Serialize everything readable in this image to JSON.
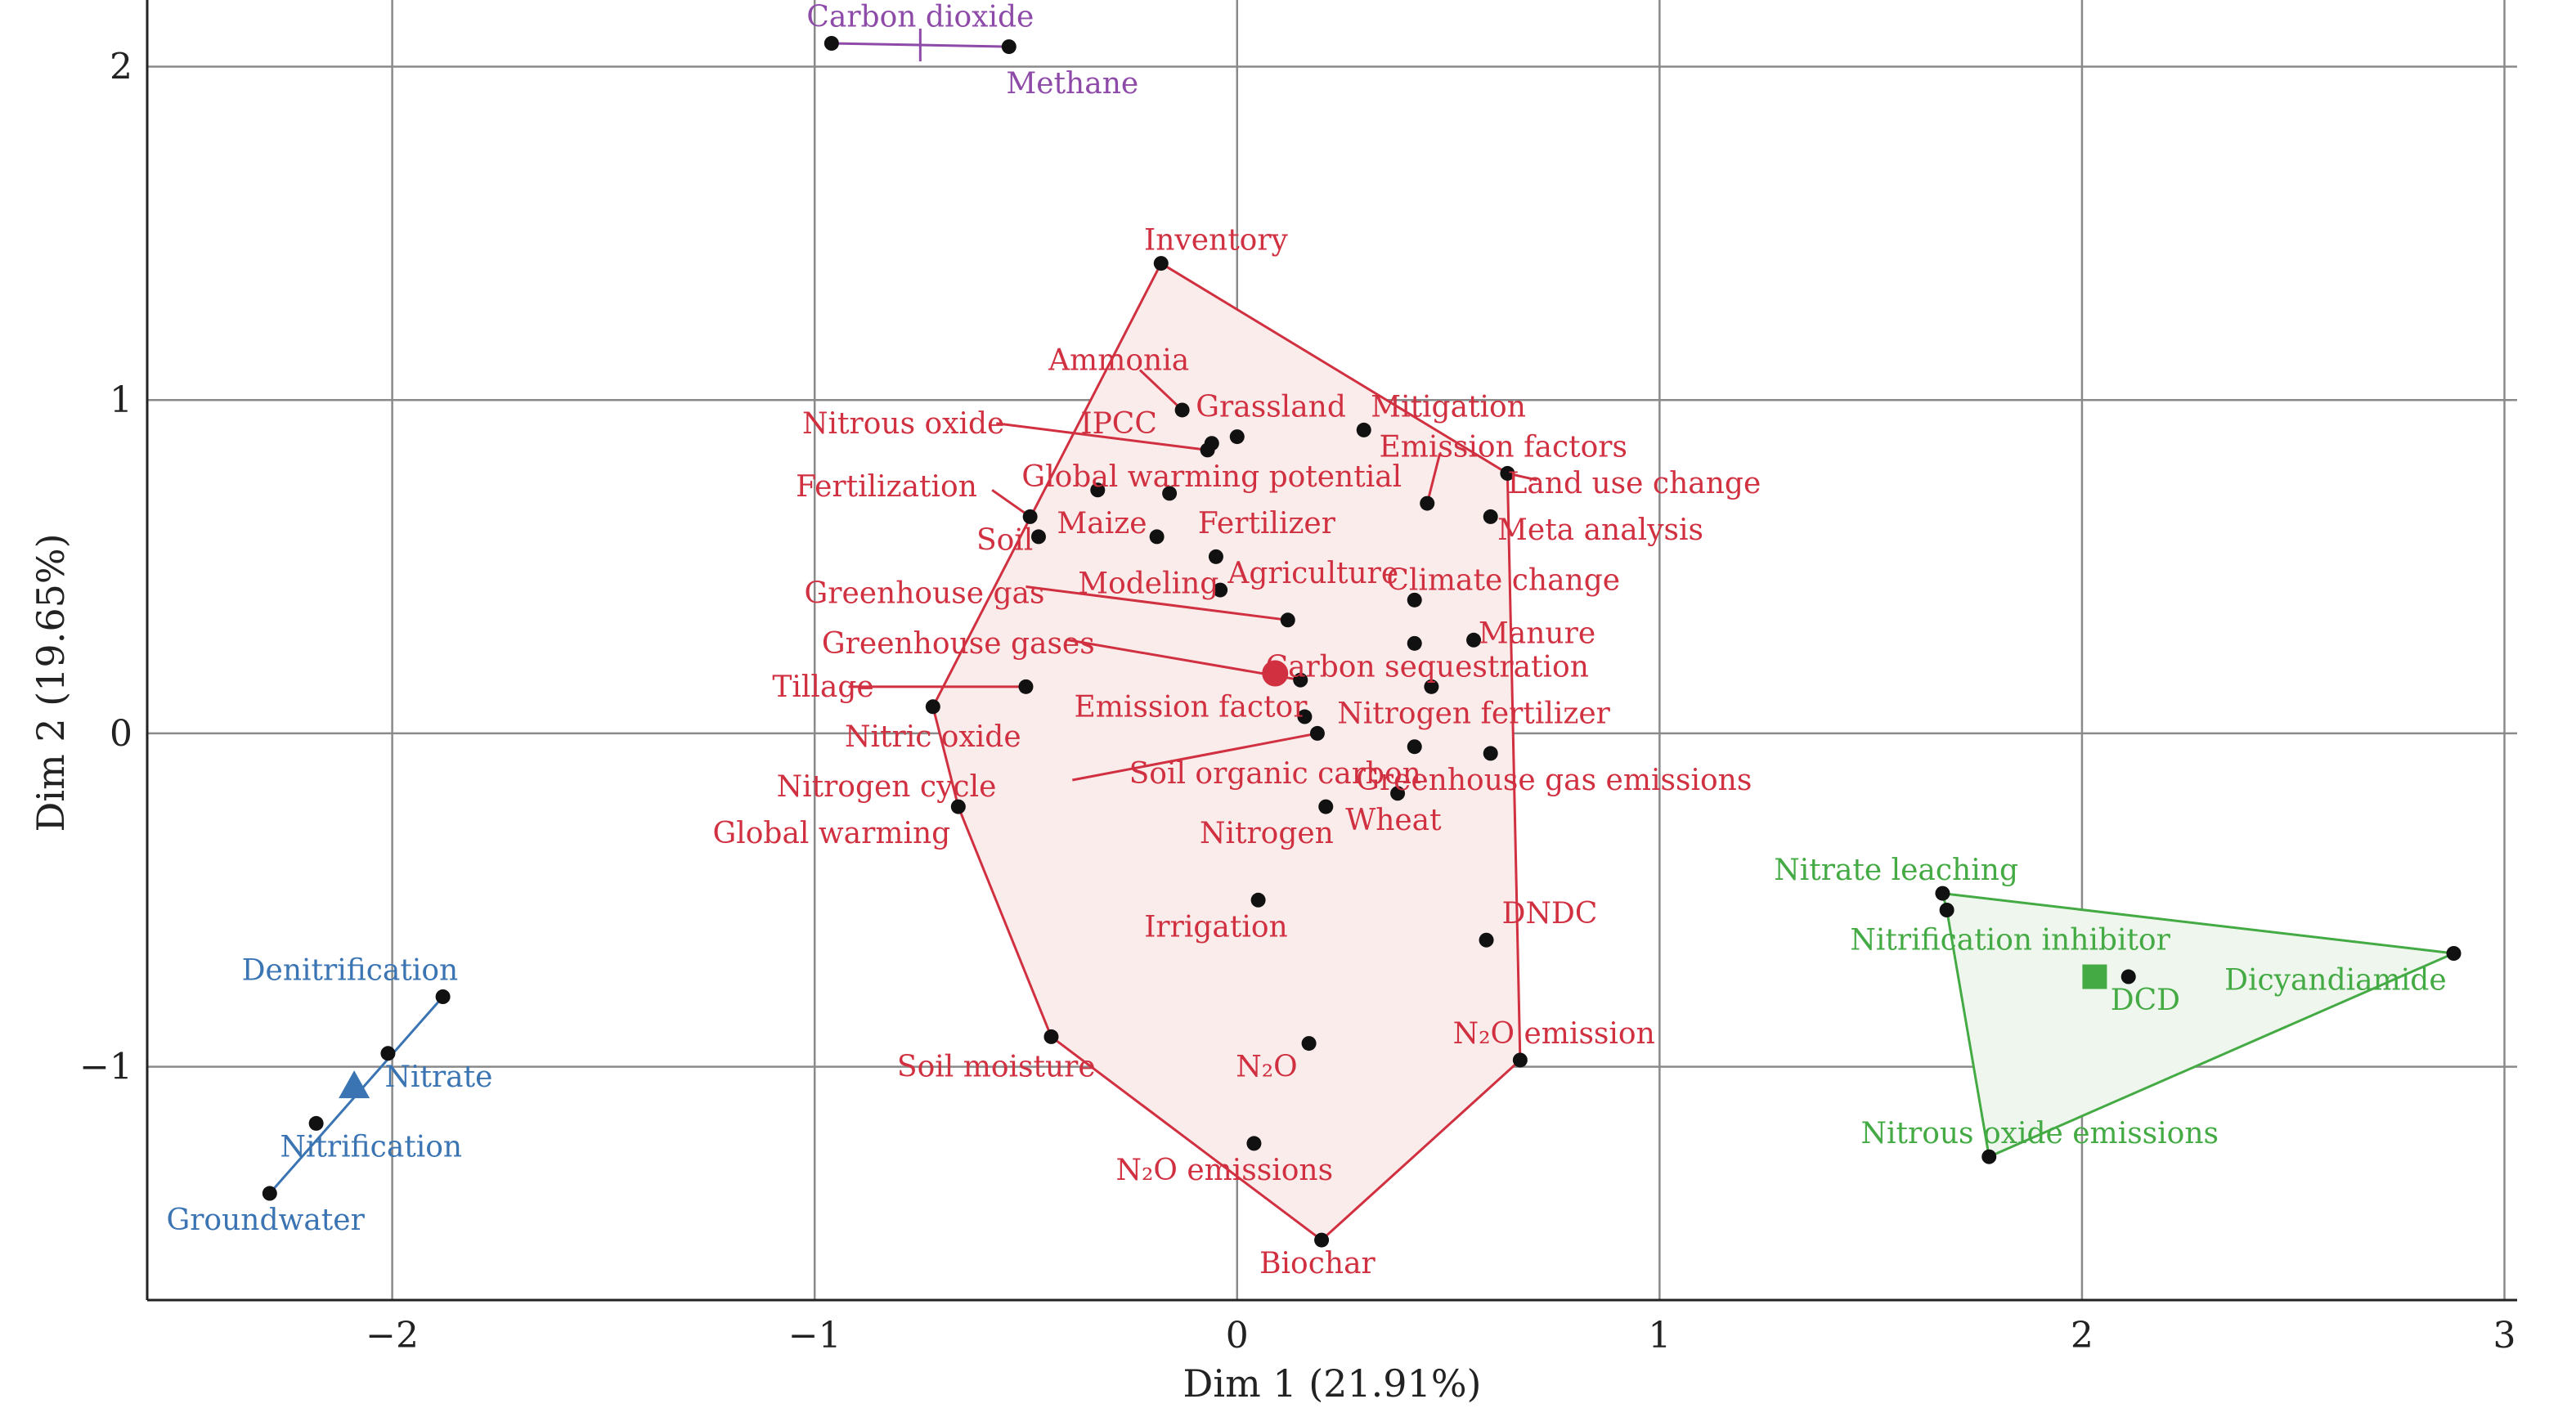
{
  "chart_data": {
    "type": "scatter",
    "xlabel": "Dim 1 (21.91%)",
    "ylabel": "Dim 2 (19.65%)",
    "xlim": [
      -2.58,
      3.03
    ],
    "ylim": [
      -1.7,
      2.2
    ],
    "xticks": [
      -2,
      -1,
      0,
      1,
      2,
      3
    ],
    "yticks": [
      -1,
      0,
      1,
      2
    ],
    "xtick_labels": [
      "−2",
      "−1",
      "0",
      "1",
      "2",
      "3"
    ],
    "ytick_labels": [
      "−1",
      "0",
      "1",
      "2"
    ],
    "grid": true,
    "colors": {
      "red": "#d03040",
      "blue": "#3b74b3",
      "green": "#44aa44",
      "purple": "#8e4aa8",
      "point": "#111111"
    },
    "clusters": [
      {
        "id": "purple",
        "color": "#8e4aa8",
        "hull": [
          [
            -0.96,
            2.07
          ],
          [
            -0.54,
            2.06
          ]
        ],
        "center": {
          "x": -0.75,
          "y": 2.065,
          "marker": "tick"
        },
        "points": [
          {
            "label": "Carbon dioxide",
            "x": -0.96,
            "y": 2.07,
            "lx": -0.75,
            "ly": 2.15
          },
          {
            "label": "Methane",
            "x": -0.54,
            "y": 2.06,
            "lx": -0.39,
            "ly": 1.95
          }
        ]
      },
      {
        "id": "red",
        "color": "#d03040",
        "fill": "#fbecec",
        "hull": [
          [
            -0.18,
            1.41
          ],
          [
            0.64,
            0.78
          ],
          [
            0.67,
            -0.98
          ],
          [
            0.2,
            -1.52
          ],
          [
            -0.44,
            -0.91
          ],
          [
            -0.66,
            -0.22
          ],
          [
            -0.72,
            0.08
          ]
        ],
        "center": {
          "x": 0.09,
          "y": 0.18,
          "marker": "circle"
        },
        "points": [
          {
            "label": "Inventory",
            "x": -0.18,
            "y": 1.41,
            "lx": -0.05,
            "ly": 1.48
          },
          {
            "label": "Ammonia",
            "x": -0.13,
            "y": 0.97,
            "lx": -0.28,
            "ly": 1.12,
            "lead": [
              -0.23,
              1.09
            ]
          },
          {
            "label": "Grassland",
            "x": 0.0,
            "y": 0.89,
            "lx": 0.08,
            "ly": 0.98
          },
          {
            "label": "Mitigation",
            "x": 0.3,
            "y": 0.91,
            "lx": 0.5,
            "ly": 0.98
          },
          {
            "label": "IPCC",
            "x": -0.06,
            "y": 0.87,
            "lx": -0.28,
            "ly": 0.93
          },
          {
            "label": "Nitrous oxide",
            "x": -0.07,
            "y": 0.85,
            "lx": -0.79,
            "ly": 0.93,
            "lead": [
              -0.57,
              0.93
            ]
          },
          {
            "label": "Emission factors",
            "x": 0.45,
            "y": 0.69,
            "lx": 0.63,
            "ly": 0.86,
            "lead": [
              0.48,
              0.84
            ]
          },
          {
            "label": "Land use change",
            "x": 0.64,
            "y": 0.78,
            "lx": 0.94,
            "ly": 0.75,
            "lead": [
              0.71,
              0.76
            ]
          },
          {
            "label": "Global warming potential",
            "x": -0.16,
            "y": 0.72,
            "lx": -0.06,
            "ly": 0.77
          },
          {
            "label": "Fertilization",
            "x": -0.49,
            "y": 0.65,
            "lx": -0.83,
            "ly": 0.74,
            "lead": [
              -0.58,
              0.73
            ]
          },
          {
            "label": "Meta analysis",
            "x": 0.6,
            "y": 0.65,
            "lx": 0.86,
            "ly": 0.61
          },
          {
            "label": "Maize",
            "x": -0.33,
            "y": 0.73,
            "lx": -0.32,
            "ly": 0.63
          },
          {
            "label": "Soil",
            "x": -0.47,
            "y": 0.59,
            "lx": -0.55,
            "ly": 0.58
          },
          {
            "label": "Fertilizer",
            "x": -0.19,
            "y": 0.59,
            "lx": 0.07,
            "ly": 0.63
          },
          {
            "label": "Agriculture",
            "x": -0.05,
            "y": 0.53,
            "lx": 0.18,
            "ly": 0.48
          },
          {
            "label": "Modeling",
            "x": -0.04,
            "y": 0.43,
            "lx": -0.21,
            "ly": 0.45
          },
          {
            "label": "Climate change",
            "x": 0.42,
            "y": 0.4,
            "lx": 0.63,
            "ly": 0.46
          },
          {
            "label": "Greenhouse gas",
            "x": 0.12,
            "y": 0.34,
            "lx": -0.74,
            "ly": 0.42,
            "lead": [
              -0.5,
              0.44
            ]
          },
          {
            "label": "Manure",
            "x": 0.56,
            "y": 0.28,
            "lx": 0.71,
            "ly": 0.3
          },
          {
            "label": "Greenhouse gases",
            "x": 0.15,
            "y": 0.16,
            "lx": -0.66,
            "ly": 0.27,
            "lead": [
              -0.4,
              0.28
            ]
          },
          {
            "label": "Carbon sequestration",
            "x": 0.42,
            "y": 0.27,
            "lx": 0.45,
            "ly": 0.2
          },
          {
            "label": "Tillage",
            "x": -0.5,
            "y": 0.14,
            "lx": -0.98,
            "ly": 0.14,
            "lead": [
              -0.92,
              0.14
            ]
          },
          {
            "label": "Emission factor",
            "x": 0.16,
            "y": 0.05,
            "lx": -0.11,
            "ly": 0.08
          },
          {
            "label": "Nitrogen fertilizer",
            "x": 0.46,
            "y": 0.14,
            "lx": 0.56,
            "ly": 0.06
          },
          {
            "label": "Nitric oxide",
            "x": -0.72,
            "y": 0.08,
            "lx": -0.72,
            "ly": -0.01
          },
          {
            "label": "Soil organic carbon",
            "x": 0.42,
            "y": -0.04,
            "lx": 0.09,
            "ly": -0.12
          },
          {
            "label": "Greenhouse gas emissions",
            "x": 0.6,
            "y": -0.06,
            "lx": 0.75,
            "ly": -0.14
          },
          {
            "label": "Nitrogen cycle",
            "x": 0.19,
            "y": 0.0,
            "lx": -0.83,
            "ly": -0.16,
            "lead": [
              -0.39,
              -0.14
            ]
          },
          {
            "label": "Wheat",
            "x": 0.38,
            "y": -0.18,
            "lx": 0.37,
            "ly": -0.26
          },
          {
            "label": "Global warming",
            "x": -0.66,
            "y": -0.22,
            "lx": -0.96,
            "ly": -0.3
          },
          {
            "label": "Nitrogen",
            "x": 0.21,
            "y": -0.22,
            "lx": 0.07,
            "ly": -0.3
          },
          {
            "label": "Irrigation",
            "x": 0.05,
            "y": -0.5,
            "lx": -0.05,
            "ly": -0.58
          },
          {
            "label": "DNDC",
            "x": 0.59,
            "y": -0.62,
            "lx": 0.74,
            "ly": -0.54
          },
          {
            "label": "N₂O emission",
            "x": 0.67,
            "y": -0.98,
            "lx": 0.75,
            "ly": -0.9
          },
          {
            "label": "Soil moisture",
            "x": -0.44,
            "y": -0.91,
            "lx": -0.57,
            "ly": -1.0
          },
          {
            "label": "N₂O",
            "x": 0.17,
            "y": -0.93,
            "lx": 0.07,
            "ly": -1.0
          },
          {
            "label": "N₂O emissions",
            "x": 0.04,
            "y": -1.23,
            "lx": -0.03,
            "ly": -1.31
          },
          {
            "label": "Biochar",
            "x": 0.2,
            "y": -1.52,
            "lx": 0.19,
            "ly": -1.59
          }
        ]
      },
      {
        "id": "blue",
        "color": "#3b74b3",
        "hull": [
          [
            -1.88,
            -0.79
          ],
          [
            -2.29,
            -1.38
          ]
        ],
        "center": {
          "x": -2.09,
          "y": -1.06,
          "marker": "triangle"
        },
        "points": [
          {
            "label": "Denitrification",
            "x": -1.88,
            "y": -0.79,
            "lx": -2.1,
            "ly": -0.71
          },
          {
            "label": "Nitrate",
            "x": -2.01,
            "y": -0.96,
            "lx": -1.89,
            "ly": -1.03
          },
          {
            "label": "Nitrification",
            "x": -2.18,
            "y": -1.17,
            "lx": -2.05,
            "ly": -1.24
          },
          {
            "label": "Groundwater",
            "x": -2.29,
            "y": -1.38,
            "lx": -2.3,
            "ly": -1.46
          }
        ]
      },
      {
        "id": "green",
        "color": "#44aa44",
        "fill": "#eff6ee",
        "hull": [
          [
            1.67,
            -0.48
          ],
          [
            2.88,
            -0.66
          ],
          [
            1.78,
            -1.27
          ],
          [
            1.68,
            -0.53
          ]
        ],
        "center": {
          "x": 2.03,
          "y": -0.73,
          "marker": "square"
        },
        "points": [
          {
            "label": "Nitrate leaching",
            "x": 1.67,
            "y": -0.48,
            "lx": 1.56,
            "ly": -0.41
          },
          {
            "label": "Nitrification inhibitor",
            "x": 1.68,
            "y": -0.53,
            "lx": 1.83,
            "ly": -0.62
          },
          {
            "label": "Dicyandiamide",
            "x": 2.88,
            "y": -0.66,
            "lx": 2.6,
            "ly": -0.74
          },
          {
            "label": "DCD",
            "x": 2.11,
            "y": -0.73,
            "lx": 2.15,
            "ly": -0.8
          },
          {
            "label": "Nitrous oxide emissions",
            "x": 1.78,
            "y": -1.27,
            "lx": 1.9,
            "ly": -1.2
          }
        ]
      }
    ]
  }
}
